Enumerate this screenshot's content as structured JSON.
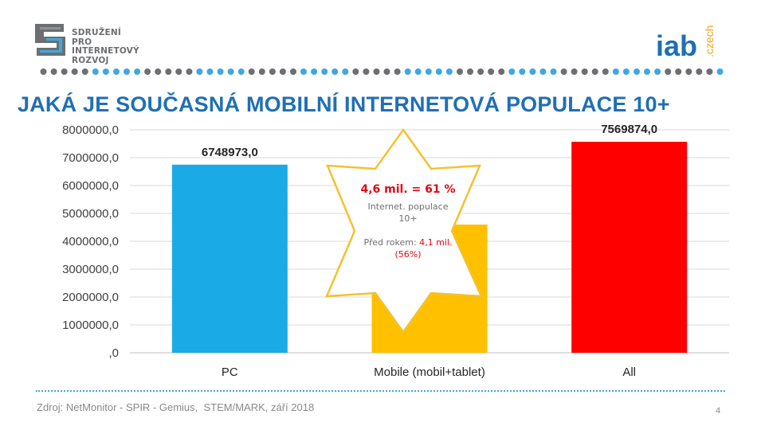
{
  "org_logo": {
    "lines": [
      "SDRUŽENÍ",
      "PRO INTERNETOVÝ",
      "ROZVOJ"
    ]
  },
  "iab_logo": {
    "main": "iab",
    "sub": ".czech"
  },
  "title": "JAKÁ JE SOUČASNÁ MOBILNÍ INTERNETOVÁ POPULACE 10+",
  "chart_data": {
    "type": "bar",
    "title": "JAKÁ JE SOUČASNÁ MOBILNÍ INTERNETOVÁ POPULACE 10+",
    "categories": [
      "PC",
      "Mobile (mobil+tablet)",
      "All"
    ],
    "values": [
      6748973.0,
      4600000.0,
      7569874.0
    ],
    "data_labels": [
      "6748973,0",
      "",
      "7569874,0"
    ],
    "colors": [
      "#1aabe6",
      "#ffc000",
      "#ff0000"
    ],
    "ylim": [
      0,
      8000000
    ],
    "yticks": [
      0,
      1000000,
      2000000,
      3000000,
      4000000,
      5000000,
      6000000,
      7000000,
      8000000
    ],
    "ytick_labels": [
      ",0",
      "1000000,0",
      "2000000,0",
      "3000000,0",
      "4000000,0",
      "5000000,0",
      "6000000,0",
      "7000000,0",
      "8000000,0"
    ],
    "grid": true,
    "xlabel": "",
    "ylabel": ""
  },
  "callout": {
    "headline": "4,6 mil. = 61 %",
    "line1": "Internet. populace",
    "line2": "10+",
    "prev_label": "Před rokem: ",
    "prev_value": "4,1 mil.",
    "prev_pct": "(56%)"
  },
  "footer": {
    "source": "Zdroj: NetMonitor - SPIR - Gemius,  STEM/MARK, září 2018",
    "page": "4"
  },
  "colors": {
    "title_blue": "#1f6fb5",
    "dot_gray": "#6d6e71",
    "dot_blue": "#3ea8e0",
    "star_stroke": "#f2c230"
  }
}
